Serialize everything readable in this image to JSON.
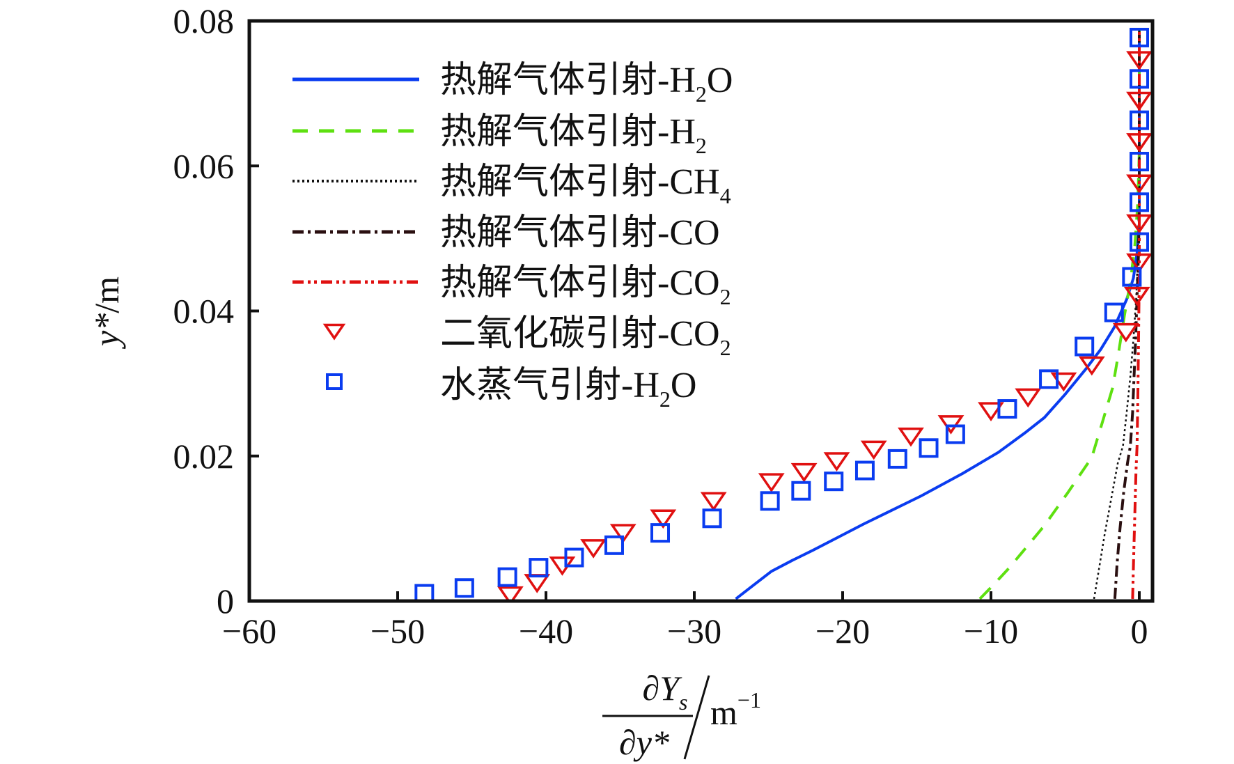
{
  "chart_data": {
    "type": "line",
    "title": "",
    "xlabel": "∂Ys/∂y* /m^-1",
    "xlabel_parts": {
      "numerator": "∂Y",
      "numerator_sub": "s",
      "denominator": "∂y*",
      "unit": "m",
      "unit_sup": "−1"
    },
    "ylabel": "y*/m",
    "ylabel_parts": {
      "var": "y*",
      "unit": "/m"
    },
    "xlim": [
      -60,
      0
    ],
    "ylim": [
      0,
      0.08
    ],
    "xticks": [
      -60,
      -50,
      -40,
      -30,
      -20,
      -10,
      0
    ],
    "xtick_labels": [
      "−60",
      "−50",
      "−40",
      "−30",
      "−20",
      "−10",
      "0"
    ],
    "yticks": [
      0,
      0.02,
      0.04,
      0.06,
      0.08
    ],
    "ytick_labels": [
      "0",
      "0.02",
      "0.04",
      "0.06",
      "0.08"
    ],
    "grid": false,
    "legend_position": "top-left",
    "series": [
      {
        "name": "热解气体引射-H2O",
        "label_main": "热解气体引射-H",
        "label_sub": "2",
        "label_tail": "O",
        "kind": "line",
        "style": "solid",
        "color": "#0a3cf0",
        "points": [
          [
            -27.2,
            0.0003
          ],
          [
            -26.0,
            0.0022
          ],
          [
            -24.8,
            0.0041
          ],
          [
            -23.4,
            0.0056
          ],
          [
            -22.0,
            0.007
          ],
          [
            -20.3,
            0.0088
          ],
          [
            -18.6,
            0.0106
          ],
          [
            -16.6,
            0.0126
          ],
          [
            -14.7,
            0.0145
          ],
          [
            -11.9,
            0.0176
          ],
          [
            -9.5,
            0.0205
          ],
          [
            -7.7,
            0.0232
          ],
          [
            -6.4,
            0.0253
          ],
          [
            -5.0,
            0.0285
          ],
          [
            -3.6,
            0.032
          ],
          [
            -2.6,
            0.0347
          ],
          [
            -1.7,
            0.0377
          ],
          [
            -0.85,
            0.0416
          ],
          [
            -0.4,
            0.0445
          ],
          [
            -0.15,
            0.048
          ],
          [
            0,
            0.052
          ],
          [
            0,
            0.079
          ]
        ]
      },
      {
        "name": "热解气体引射-H2",
        "label_main": "热解气体引射-H",
        "label_sub": "2",
        "label_tail": "",
        "kind": "line",
        "style": "dashed",
        "color": "#5ee010",
        "points": [
          [
            -10.75,
            0.0003
          ],
          [
            -9.8,
            0.0023
          ],
          [
            -8.8,
            0.0045
          ],
          [
            -7.9,
            0.0067
          ],
          [
            -6.4,
            0.0104
          ],
          [
            -4.8,
            0.015
          ],
          [
            -3.2,
            0.0198
          ],
          [
            -2.5,
            0.0246
          ],
          [
            -1.8,
            0.0294
          ],
          [
            -1.4,
            0.0342
          ],
          [
            -1.0,
            0.0394
          ],
          [
            -0.6,
            0.044
          ],
          [
            -0.3,
            0.049
          ],
          [
            -0.1,
            0.055
          ],
          [
            0,
            0.062
          ],
          [
            0,
            0.079
          ]
        ]
      },
      {
        "name": "热解气体引射-CH4",
        "label_main": "热解气体引射-CH",
        "label_sub": "4",
        "label_tail": "",
        "kind": "line",
        "style": "dotted",
        "color": "#111111",
        "points": [
          [
            -3.05,
            0.0003
          ],
          [
            -2.75,
            0.004
          ],
          [
            -2.35,
            0.009
          ],
          [
            -1.9,
            0.014
          ],
          [
            -1.45,
            0.019
          ],
          [
            -1.1,
            0.0214
          ],
          [
            -0.85,
            0.026
          ],
          [
            -0.6,
            0.031
          ],
          [
            -0.4,
            0.036
          ],
          [
            -0.2,
            0.042
          ],
          [
            -0.1,
            0.048
          ],
          [
            0,
            0.055
          ],
          [
            0,
            0.079
          ]
        ]
      },
      {
        "name": "热解气体引射-CO",
        "label_main": "热解气体引射-CO",
        "label_sub": "",
        "label_tail": "",
        "kind": "line",
        "style": "dashdot",
        "color": "#2a0f10",
        "points": [
          [
            -1.65,
            0.0003
          ],
          [
            -1.5,
            0.005
          ],
          [
            -1.3,
            0.01
          ],
          [
            -1.05,
            0.015
          ],
          [
            -0.8,
            0.019
          ],
          [
            -0.6,
            0.0214
          ],
          [
            -0.45,
            0.026
          ],
          [
            -0.35,
            0.031
          ],
          [
            -0.25,
            0.036
          ],
          [
            -0.15,
            0.042
          ],
          [
            -0.05,
            0.048
          ],
          [
            0,
            0.055
          ],
          [
            0,
            0.079
          ]
        ]
      },
      {
        "name": "热解气体引射-CO2",
        "label_main": "热解气体引射-CO",
        "label_sub": "2",
        "label_tail": "",
        "kind": "line",
        "style": "dashdotdot",
        "color": "#e01010",
        "points": [
          [
            -0.45,
            0.0003
          ],
          [
            -0.38,
            0.006
          ],
          [
            -0.3,
            0.012
          ],
          [
            -0.22,
            0.018
          ],
          [
            -0.15,
            0.0214
          ],
          [
            -0.1,
            0.028
          ],
          [
            -0.05,
            0.036
          ],
          [
            0,
            0.045
          ],
          [
            0,
            0.079
          ]
        ]
      },
      {
        "name": "二氧化碳引射-CO2",
        "label_main": "二氧化碳引射-CO",
        "label_sub": "2",
        "label_tail": "",
        "kind": "marker",
        "marker": "triangle-down",
        "color": "#e01010",
        "points": [
          [
            -42.4,
            0.001
          ],
          [
            -40.6,
            0.0027
          ],
          [
            -38.9,
            0.0051
          ],
          [
            -36.8,
            0.0075
          ],
          [
            -34.8,
            0.0096
          ],
          [
            -32.1,
            0.0116
          ],
          [
            -28.7,
            0.014
          ],
          [
            -24.8,
            0.0166
          ],
          [
            -22.6,
            0.018
          ],
          [
            -20.4,
            0.0195
          ],
          [
            -17.9,
            0.0211
          ],
          [
            -15.4,
            0.0229
          ],
          [
            -12.7,
            0.0246
          ],
          [
            -10.0,
            0.0264
          ],
          [
            -7.5,
            0.0283
          ],
          [
            -5.1,
            0.0305
          ],
          [
            -3.2,
            0.0327
          ],
          [
            -0.9,
            0.0373
          ],
          [
            -0.15,
            0.0423
          ],
          [
            0,
            0.0469
          ],
          [
            0,
            0.0523
          ],
          [
            0,
            0.0578
          ],
          [
            0,
            0.0635
          ],
          [
            0,
            0.0692
          ],
          [
            0,
            0.0748
          ]
        ]
      },
      {
        "name": "水蒸气引射-H2O",
        "label_main": "水蒸气引射-H",
        "label_sub": "2",
        "label_tail": "O",
        "kind": "marker",
        "marker": "square",
        "color": "#0a3cf0",
        "points": [
          [
            -48.2,
            0.001
          ],
          [
            -45.5,
            0.0018
          ],
          [
            -42.6,
            0.0033
          ],
          [
            -40.5,
            0.0046
          ],
          [
            -38.1,
            0.006
          ],
          [
            -35.4,
            0.0077
          ],
          [
            -32.3,
            0.0094
          ],
          [
            -28.8,
            0.0114
          ],
          [
            -24.9,
            0.0138
          ],
          [
            -22.8,
            0.0152
          ],
          [
            -20.6,
            0.0165
          ],
          [
            -18.5,
            0.018
          ],
          [
            -16.3,
            0.0196
          ],
          [
            -14.2,
            0.0211
          ],
          [
            -12.4,
            0.023
          ],
          [
            -8.9,
            0.0265
          ],
          [
            -6.1,
            0.0306
          ],
          [
            -3.7,
            0.0351
          ],
          [
            -1.7,
            0.0398
          ],
          [
            -0.5,
            0.0447
          ],
          [
            0,
            0.0495
          ],
          [
            0,
            0.055
          ],
          [
            0,
            0.0606
          ],
          [
            0,
            0.0663
          ],
          [
            0,
            0.072
          ],
          [
            0,
            0.0777
          ]
        ]
      }
    ]
  }
}
